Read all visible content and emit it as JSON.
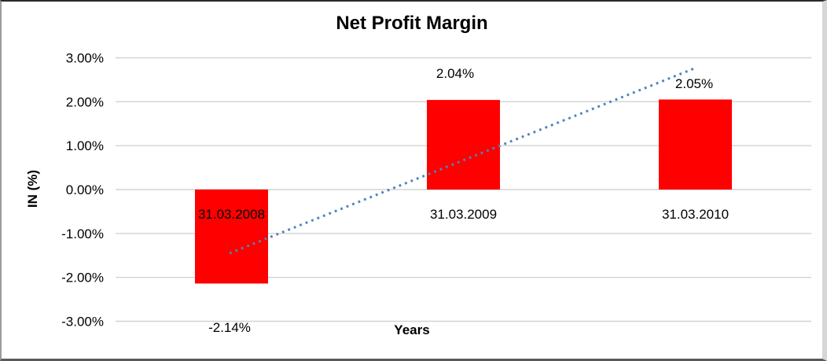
{
  "chart_data": {
    "type": "bar",
    "title": "Net Profit Margin",
    "xlabel": "Years",
    "ylabel": "IN (%)",
    "categories": [
      "31.03.2008",
      "31.03.2009",
      "31.03.2010"
    ],
    "values": [
      -2.14,
      2.04,
      2.05
    ],
    "data_labels": [
      "-2.14%",
      "2.04%",
      "2.05%"
    ],
    "y_tick_values": [
      3,
      2,
      1,
      0,
      -1,
      -2,
      -3
    ],
    "y_tick_labels": [
      "3.00%",
      "2.00%",
      "1.00%",
      "0.00%",
      "-1.00%",
      "-2.00%",
      "-3.00%"
    ],
    "ylim": [
      -3,
      3
    ],
    "grid": "horizontal",
    "legend": "none",
    "bar_color": "#ff0000",
    "gridline_color": "#d3d3d3",
    "trendline": {
      "type": "linear",
      "style": "dotted",
      "color": "#4f81bd",
      "start_value": -1.45,
      "end_value": 2.75
    }
  }
}
